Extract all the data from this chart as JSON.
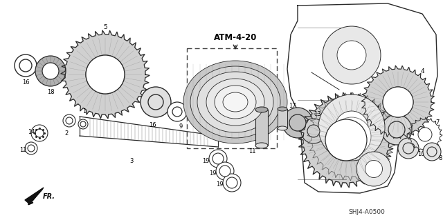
{
  "bg_color": "#ffffff",
  "line_color": "#2a2a2a",
  "atm_label": "ATM-4-20",
  "footer_code": "SHJ4-A0500",
  "fr_label": "FR.",
  "fig_w": 6.4,
  "fig_h": 3.19,
  "dpi": 100
}
